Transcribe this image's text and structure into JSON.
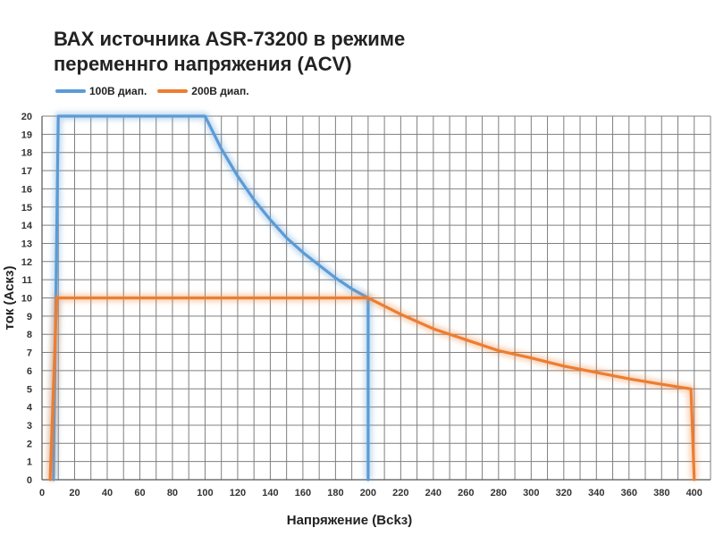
{
  "chart_data": {
    "type": "line",
    "title_lines": [
      "ВАХ источника ASR-73200 в режиме",
      "переменнго напряжения (ACV)"
    ],
    "xlabel": "Напряжение (Всkз)",
    "ylabel": "ток (Аскз)",
    "xlim": [
      0,
      410
    ],
    "ylim": [
      0,
      20
    ],
    "xticks": [
      0,
      20,
      40,
      60,
      80,
      100,
      120,
      140,
      160,
      180,
      200,
      220,
      240,
      260,
      280,
      300,
      320,
      340,
      360,
      380,
      400
    ],
    "yticks": [
      0,
      1,
      2,
      3,
      4,
      5,
      6,
      7,
      8,
      9,
      10,
      11,
      12,
      13,
      14,
      15,
      16,
      17,
      18,
      19,
      20
    ],
    "grid": true,
    "legend_position": "top-left",
    "series": [
      {
        "name": "100В диап.",
        "color": "#5b9bd5",
        "points": [
          [
            7,
            0
          ],
          [
            10,
            20
          ],
          [
            100,
            20
          ],
          [
            110,
            18.2
          ],
          [
            120,
            16.7
          ],
          [
            130,
            15.4
          ],
          [
            140,
            14.3
          ],
          [
            150,
            13.3
          ],
          [
            160,
            12.5
          ],
          [
            170,
            11.8
          ],
          [
            180,
            11.1
          ],
          [
            190,
            10.5
          ],
          [
            200,
            10
          ],
          [
            200,
            0
          ]
        ]
      },
      {
        "name": "200В диап.",
        "color": "#ed7d31",
        "points": [
          [
            5,
            0
          ],
          [
            9,
            10
          ],
          [
            200,
            10
          ],
          [
            220,
            9.1
          ],
          [
            240,
            8.3
          ],
          [
            260,
            7.7
          ],
          [
            280,
            7.1
          ],
          [
            300,
            6.7
          ],
          [
            320,
            6.25
          ],
          [
            340,
            5.9
          ],
          [
            360,
            5.55
          ],
          [
            380,
            5.25
          ],
          [
            398,
            5
          ],
          [
            400,
            0
          ]
        ]
      }
    ]
  }
}
